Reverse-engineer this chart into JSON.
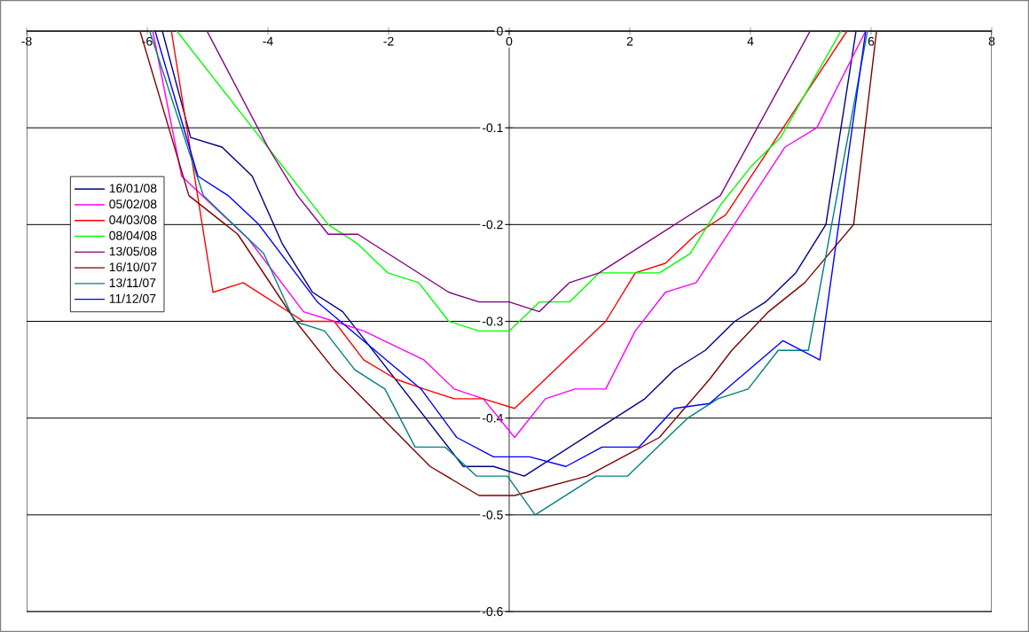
{
  "chart_data": {
    "type": "line",
    "xlim": [
      -8,
      8
    ],
    "ylim": [
      -0.6,
      0
    ],
    "xticks": [
      -8,
      -6,
      -4,
      -2,
      0,
      2,
      4,
      6,
      8
    ],
    "yticks": [
      -0.6,
      -0.5,
      -0.4,
      -0.3,
      -0.2,
      -0.1,
      0
    ],
    "grid": "y",
    "legend": "left",
    "marker": "none",
    "line_style": "solid",
    "series": [
      {
        "name": "16/01/08",
        "color": "#000080",
        "x": [
          -5.75,
          -5.28,
          -4.76,
          -4.26,
          -3.76,
          -3.26,
          -2.76,
          -0.76,
          -0.26,
          0.25,
          2.25,
          2.74,
          3.25,
          3.74,
          4.25,
          4.75,
          5.25,
          5.75
        ],
        "values": [
          0,
          -0.11,
          -0.12,
          -0.15,
          -0.22,
          -0.27,
          -0.29,
          -0.45,
          -0.45,
          -0.46,
          -0.38,
          -0.35,
          -0.33,
          -0.3,
          -0.28,
          -0.25,
          -0.2,
          0
        ]
      },
      {
        "name": "05/02/08",
        "color": "#ff00ff",
        "x": [
          -5.91,
          -5.43,
          -4.32,
          -3.41,
          -2.9,
          -2.41,
          -1.41,
          -0.91,
          -0.43,
          0.09,
          0.6,
          1.09,
          1.6,
          2.09,
          2.59,
          3.1,
          4.57,
          5.1,
          5.91
        ],
        "values": [
          0,
          -0.15,
          -0.215,
          -0.29,
          -0.3,
          -0.31,
          -0.34,
          -0.37,
          -0.38,
          -0.42,
          -0.38,
          -0.37,
          -0.37,
          -0.31,
          -0.27,
          -0.26,
          -0.12,
          -0.1,
          0
        ]
      },
      {
        "name": "04/03/08",
        "color": "#ff0000",
        "x": [
          -5.6,
          -4.91,
          -4.41,
          -3.41,
          -2.9,
          -2.41,
          -1.87,
          -1.41,
          -0.91,
          -0.43,
          0.09,
          1.6,
          2.09,
          2.59,
          3.1,
          3.59,
          5.6
        ],
        "values": [
          0,
          -0.27,
          -0.26,
          -0.3,
          -0.3,
          -0.34,
          -0.36,
          -0.37,
          -0.38,
          -0.38,
          -0.39,
          -0.3,
          -0.25,
          -0.24,
          -0.21,
          -0.19,
          0
        ]
      },
      {
        "name": "08/04/08",
        "color": "#00ff00",
        "x": [
          -5.51,
          -3.0,
          -2.51,
          -2.01,
          -1.5,
          -1.0,
          -0.5,
          0,
          0.5,
          1.0,
          1.49,
          2.49,
          3.0,
          3.5,
          4.01,
          4.5,
          5.5
        ],
        "values": [
          0,
          -0.2,
          -0.22,
          -0.25,
          -0.26,
          -0.3,
          -0.31,
          -0.31,
          -0.28,
          -0.28,
          -0.25,
          -0.25,
          -0.23,
          -0.18,
          -0.14,
          -0.11,
          0
        ]
      },
      {
        "name": "13/05/08",
        "color": "#800080",
        "x": [
          -5.01,
          -4.0,
          -3.51,
          -3.0,
          -2.51,
          -1.0,
          -0.5,
          0,
          0.5,
          1.0,
          1.49,
          3.5,
          4.99
        ],
        "values": [
          0,
          -0.12,
          -0.17,
          -0.21,
          -0.21,
          -0.27,
          -0.28,
          -0.28,
          -0.29,
          -0.26,
          -0.25,
          -0.17,
          0
        ]
      },
      {
        "name": "16/10/07",
        "color": "#800000",
        "x": [
          -6.12,
          -5.31,
          -4.5,
          -3.54,
          -2.9,
          -1.31,
          -0.5,
          0.09,
          1.29,
          2.49,
          3.32,
          3.69,
          4.3,
          4.9,
          5.71,
          6.09
        ],
        "values": [
          0,
          -0.17,
          -0.21,
          -0.3,
          -0.35,
          -0.45,
          -0.48,
          -0.48,
          -0.46,
          -0.42,
          -0.36,
          -0.33,
          -0.29,
          -0.26,
          -0.2,
          0
        ]
      },
      {
        "name": "13/11/07",
        "color": "#008080",
        "x": [
          -5.96,
          -5.07,
          -4.07,
          -3.56,
          -3.06,
          -2.56,
          -2.06,
          -1.56,
          -1.06,
          -0.54,
          -0.03,
          0.43,
          1.44,
          1.96,
          2.46,
          2.96,
          3.46,
          3.96,
          4.46,
          4.96,
          5.94
        ],
        "values": [
          0,
          -0.17,
          -0.23,
          -0.3,
          -0.31,
          -0.35,
          -0.37,
          -0.43,
          -0.43,
          -0.46,
          -0.46,
          -0.5,
          -0.46,
          -0.46,
          -0.43,
          -0.4,
          -0.38,
          -0.37,
          -0.33,
          -0.33,
          0
        ]
      },
      {
        "name": "11/12/07",
        "color": "#0000ff",
        "x": [
          -5.87,
          -5.16,
          -4.66,
          -4.15,
          -3.18,
          -1.46,
          -0.87,
          -0.26,
          0.34,
          0.94,
          1.54,
          2.15,
          2.74,
          3.32,
          4.54,
          5.15,
          5.91
        ],
        "values": [
          0,
          -0.15,
          -0.17,
          -0.2,
          -0.28,
          -0.37,
          -0.42,
          -0.44,
          -0.44,
          -0.45,
          -0.43,
          -0.43,
          -0.39,
          -0.385,
          -0.32,
          -0.34,
          0
        ]
      }
    ]
  }
}
